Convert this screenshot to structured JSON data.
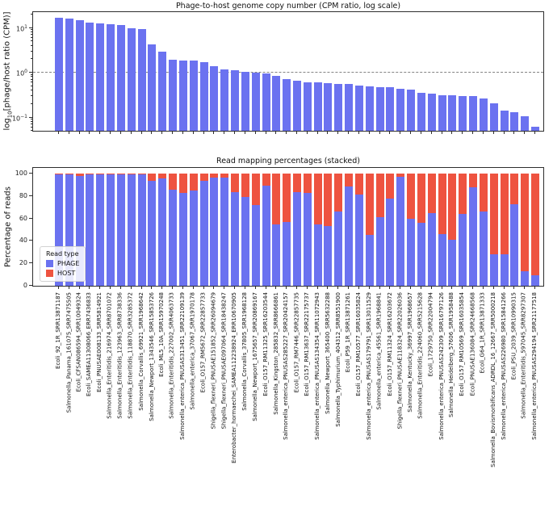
{
  "figure": {
    "background": "#ffffff",
    "axis_color": "#2e2e2e",
    "dashed_line_color": "#848484"
  },
  "chart_data": [
    {
      "type": "bar",
      "title": "Phage-to-host genome copy number (CPM ratio, log scale)",
      "ylabel": "log10[phage/host ratio (CPM)]",
      "ylabel_parts": {
        "prefix": "log",
        "sub": "10",
        "rest": "[phage/host ratio (CPM)]"
      },
      "yscale": "log",
      "ylim": [
        0.046,
        22.4
      ],
      "yticks": [
        {
          "value": 10,
          "base": "10",
          "exp": "1"
        },
        {
          "value": 1,
          "base": "10",
          "exp": "0"
        },
        {
          "value": 0.1,
          "base": "10",
          "exp": "−1"
        }
      ],
      "reference_line": 1.0,
      "bar_color": "#6b72f0",
      "grid": false,
      "categories": [
        "Ecoli_92_1R_SRR13871187",
        "Salmonella_Panama_161075_SRR7475505",
        "Ecoli_CFSAN086594_SRR10049324",
        "Ecoli_SAMEA11308066_ERR7436833",
        "Ecoli_PNUSAE008133_SRR5814921",
        "Salmonella_Enteritidis_216974_SRR8701072",
        "Salmonella_Enteritidis_123963_SRR8738336",
        "Salmonella_Enteritidis_118870_SRR3285372",
        "Salmonella_Corvallis_69921_SRR1968642",
        "Salmonella_Newport_1343546_SRR15853726",
        "Ecoli_ML5_10A_SRR15970248",
        "Salmonella_Enteritidis_227002_SRR4063733",
        "Salmonella_enterica_PNUSAS313451_SRR22109139",
        "Salmonella_enterica_37067_SRR1970178",
        "Ecoli_O157_RM5672_SRR22857733",
        "Shigella_flexneri_PNUSAE151852_SRR26094679",
        "Shigella_flexneri_PNUSAE097064_SRR18438247",
        "Enterobacter_hormaechei_SAMEA112238924_ERR10670905",
        "Salmonella_Corvallis_37805_SRR1968128",
        "Salmonella_Newport_1675657_SRR20869167",
        "Ecoli_O157_RM11325_SRR16203544",
        "Salmonella_Kingston_285832_SRR8666861",
        "Salmonella_enterica_PNUSAS285227_SRR20424157",
        "Ecoli_O157_RM7446_SRR22857735",
        "Ecoli_O157_RM13637_SRR22175737",
        "Salmonella_enterica_PNUSAS134354_SRR11072943",
        "Salmonella_Newport_365400_SRR5632288",
        "Salmonella_Typhimurium_404312_SRR8551900",
        "Ecoli_P59_1R_SRR13871261",
        "Ecoli_O157_RM10577_SRR16035824",
        "Salmonella_enterica_PNUSAS179791_SRR13011529",
        "Salmonella_enterica_45561_SRR1968841",
        "Ecoli_O157_RM11324_SRR16203672",
        "Shigella_flexneri_PNUSAE118324_SRR22026036",
        "Salmonella_Kentucky_36997_SRR1968657",
        "Salmonella_Enteritidis_224060_SRR5215628",
        "Ecoli_1729750_SRR22004794",
        "Salmonella_enterica_PNUSAS242309_SRR16797126",
        "Salmonella_Heidelberg_57606_SRR1958488",
        "Ecoli_O157_RM10569_SRR16035854",
        "Ecoli_PNUSAE136084_SRR24668568",
        "Ecoli_G64_1R_SRR13871333",
        "Salmonella_Bovismorbificans_ADRDL_16_12667_SRR5000218",
        "Salmonella_enterica_PNUSAS226980_SRR15841266",
        "Ecoli_PSU_2039_SRR10990315",
        "Salmonella_Enteritidis_597045_SRR8297307",
        "Salmonella_enterica_PNUSAS294194_SRR21177518"
      ],
      "values": [
        17.0,
        16.0,
        14.7,
        13.2,
        12.4,
        12.2,
        11.6,
        9.8,
        9.4,
        4.2,
        3.0,
        1.95,
        1.9,
        1.85,
        1.7,
        1.4,
        1.2,
        1.13,
        1.06,
        1.01,
        0.95,
        0.84,
        0.73,
        0.67,
        0.62,
        0.6,
        0.585,
        0.57,
        0.555,
        0.51,
        0.49,
        0.475,
        0.468,
        0.44,
        0.42,
        0.36,
        0.345,
        0.315,
        0.31,
        0.3,
        0.295,
        0.265,
        0.21,
        0.14,
        0.133,
        0.105,
        0.063
      ]
    },
    {
      "type": "stacked_bar",
      "title": "Read mapping percentages (stacked)",
      "ylabel": "Percentage of reads",
      "ylim": [
        0,
        100
      ],
      "yticks": [
        0,
        20,
        40,
        60,
        80,
        100
      ],
      "legend": {
        "title": "Read type",
        "entries": [
          {
            "label": "PHAGE",
            "color": "#6b72f0"
          },
          {
            "label": "HOST",
            "color": "#ee5340"
          }
        ],
        "position": "lower-left"
      },
      "series": [
        {
          "name": "PHAGE",
          "color": "#6b72f0",
          "values": [
            99.5,
            99.5,
            98.2,
            99.5,
            99.5,
            99.5,
            99.5,
            99.0,
            99.5,
            93.3,
            95.7,
            85.8,
            82.5,
            84.7,
            93.3,
            96.5,
            96.4,
            83.7,
            78.9,
            71.7,
            89.5,
            55.0,
            57.0,
            83.5,
            82.5,
            55.0,
            53.5,
            66.0,
            88.5,
            81.0,
            45.5,
            61.0,
            78.0,
            97.0,
            60.0,
            56.0,
            65.0,
            46.0,
            41.0,
            64.0,
            88.0,
            66.0,
            28.0,
            28.0,
            73.0,
            13.0,
            9.0
          ]
        },
        {
          "name": "HOST",
          "color": "#ee5340",
          "values": [
            0.5,
            0.5,
            1.8,
            0.5,
            0.5,
            0.5,
            0.5,
            1.0,
            0.5,
            6.7,
            4.3,
            14.2,
            17.5,
            15.3,
            6.7,
            3.5,
            3.6,
            16.3,
            21.1,
            28.3,
            10.5,
            45.0,
            43.0,
            16.5,
            17.5,
            45.0,
            46.5,
            34.0,
            11.5,
            19.0,
            54.5,
            39.0,
            22.0,
            3.0,
            40.0,
            44.0,
            35.0,
            54.0,
            59.0,
            36.0,
            12.0,
            34.0,
            72.0,
            72.0,
            27.0,
            87.0,
            91.0
          ]
        }
      ]
    }
  ]
}
